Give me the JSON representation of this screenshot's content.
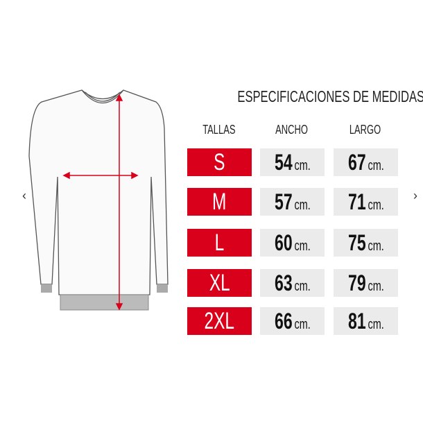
{
  "title": "ESPECIFICACIONES DE MEDIDAS",
  "headers": {
    "size": "TALLAS",
    "width": "ANCHO",
    "length": "LARGO"
  },
  "unit": "cm.",
  "rows": [
    {
      "size": "S",
      "width": "54",
      "length": "67"
    },
    {
      "size": "M",
      "width": "57",
      "length": "71"
    },
    {
      "size": "L",
      "width": "60",
      "length": "75"
    },
    {
      "size": "XL",
      "width": "63",
      "length": "79"
    },
    {
      "size": "2XL",
      "width": "66",
      "length": "81"
    }
  ],
  "nav": {
    "prev": "‹",
    "next": "›"
  },
  "colors": {
    "size_bg": "#d9001b",
    "value_bg": "#ebebeb",
    "measure_line": "#d9001b"
  }
}
